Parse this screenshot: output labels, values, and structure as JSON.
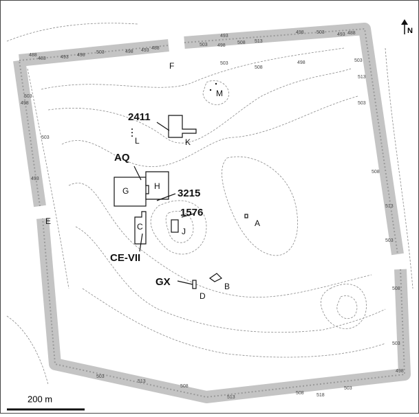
{
  "map": {
    "north": "N",
    "scale_bar": "200 m",
    "features": [
      {
        "label": "A"
      },
      {
        "label": "B"
      },
      {
        "label": "C"
      },
      {
        "label": "D"
      },
      {
        "label": "E"
      },
      {
        "label": "F"
      },
      {
        "label": "G"
      },
      {
        "label": "H"
      },
      {
        "label": "J"
      },
      {
        "label": "K"
      },
      {
        "label": "L"
      },
      {
        "label": "M"
      },
      {
        "label": "GX"
      },
      {
        "label": "CE-VII"
      },
      {
        "label": "AQ"
      },
      {
        "label": "2411"
      },
      {
        "label": "3215"
      },
      {
        "label": "1576"
      }
    ],
    "contour_labels": [
      "488",
      "483",
      "493",
      "498",
      "503",
      "488",
      "493",
      "498",
      "503",
      "498",
      "508",
      "513",
      "498",
      "503",
      "493",
      "488",
      "493",
      "503",
      "498",
      "508",
      "503",
      "513",
      "503",
      "508",
      "513",
      "503",
      "508",
      "503",
      "498",
      "503",
      "508",
      "513",
      "508",
      "503",
      "513",
      "518",
      "493",
      "503",
      "498",
      "503"
    ]
  }
}
